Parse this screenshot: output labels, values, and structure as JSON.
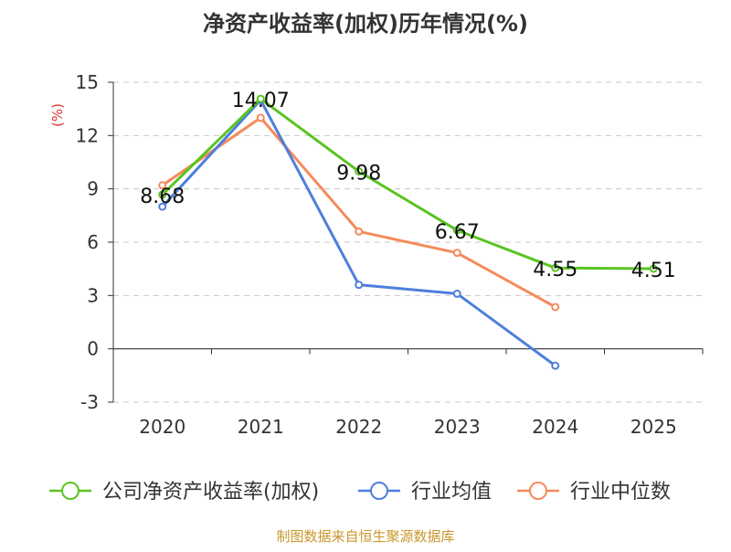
{
  "chart_data": {
    "type": "line",
    "title": "净资产收益率(加权)历年情况(%)",
    "ylabel": "(%)",
    "xlabel": "",
    "categories": [
      "2020",
      "2021",
      "2022",
      "2023",
      "2024",
      "2025"
    ],
    "ylim": [
      -3,
      15
    ],
    "yticks": [
      -3,
      0,
      3,
      6,
      9,
      12,
      15
    ],
    "grid": true,
    "legend_position": "bottom",
    "series": [
      {
        "name": "公司净资产收益率(加权)",
        "color": "#5ac421",
        "values": [
          8.68,
          14.07,
          9.98,
          6.67,
          4.55,
          4.51
        ],
        "labels": [
          "8.68",
          "14.07",
          "9.98",
          "6.67",
          "4.55",
          "4.51"
        ]
      },
      {
        "name": "行业均值",
        "color": "#4e7fdc",
        "values": [
          8.0,
          14.0,
          3.6,
          3.1,
          -0.95,
          null
        ]
      },
      {
        "name": "行业中位数",
        "color": "#f58a5a",
        "values": [
          9.2,
          13.0,
          6.6,
          5.4,
          2.35,
          null
        ]
      }
    ],
    "source": "制图数据来自恒生聚源数据库"
  }
}
